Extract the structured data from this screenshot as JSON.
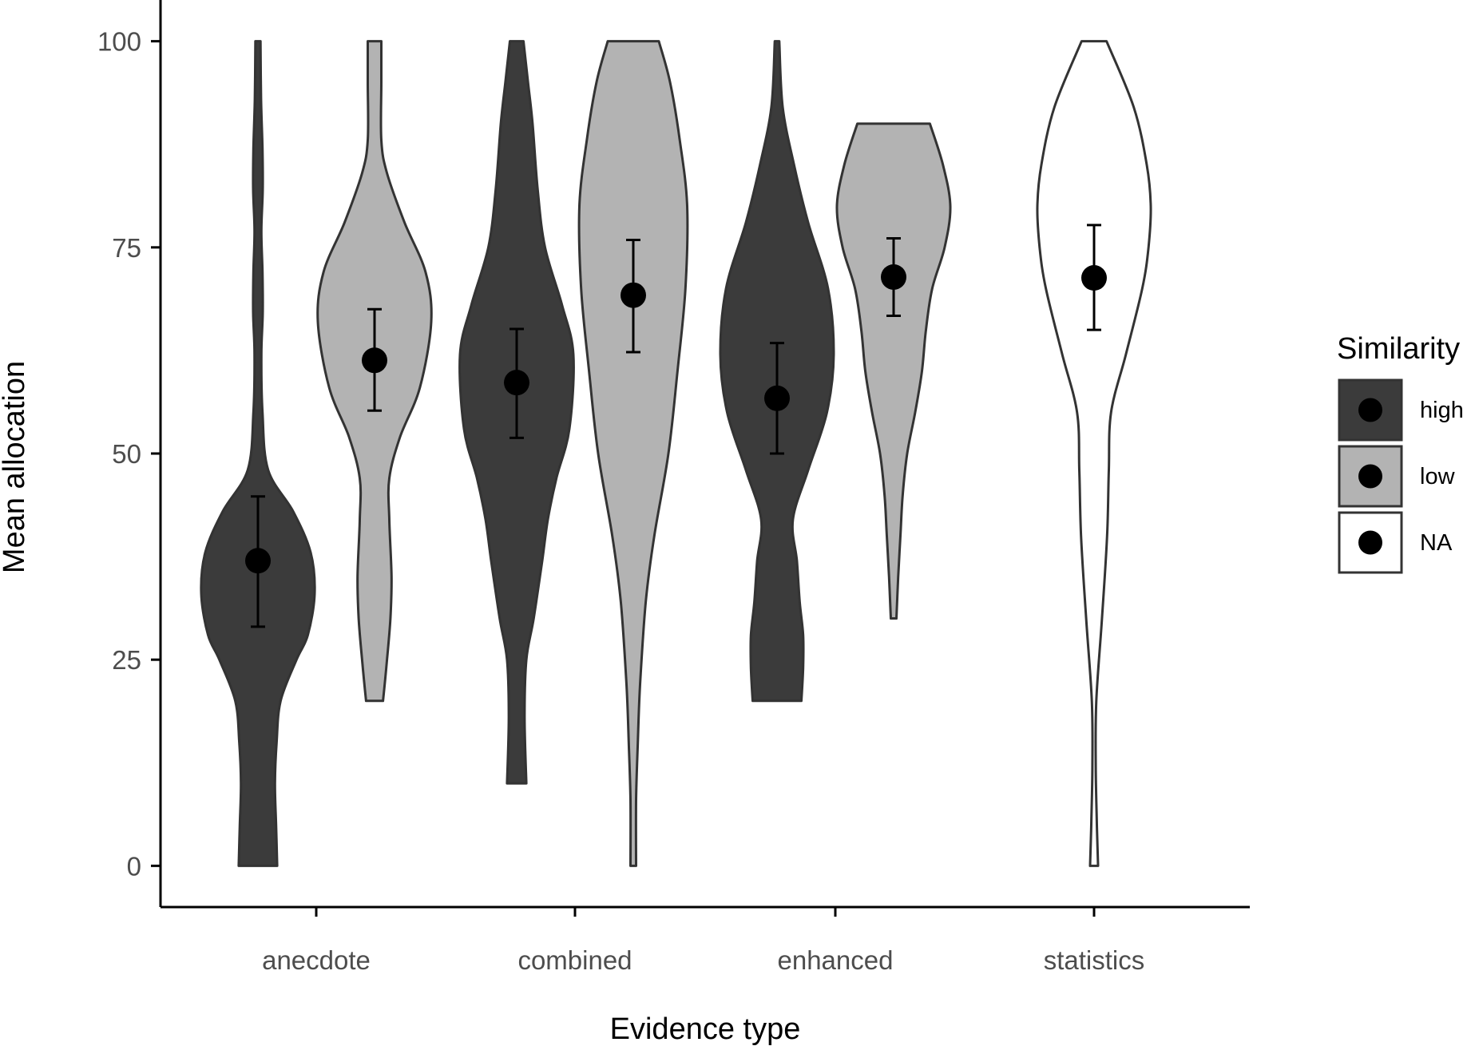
{
  "chart_data": {
    "type": "violin",
    "xlabel": "Evidence type",
    "ylabel": "Mean allocation",
    "categories": [
      "anecdote",
      "combined",
      "enhanced",
      "statistics"
    ],
    "ylim": [
      -5,
      105
    ],
    "yticks": [
      "0",
      "25",
      "50",
      "75",
      "100"
    ],
    "legend": {
      "title": "Similarity",
      "position": "right",
      "entries": [
        {
          "label": "high",
          "fill": "#3b3b3b"
        },
        {
          "label": "low",
          "fill": "#b3b3b3"
        },
        {
          "label": "NA",
          "fill": "#ffffff"
        }
      ]
    },
    "series": [
      {
        "category": "anecdote",
        "similarity": "high",
        "fill": "#3b3b3b",
        "mean": 37.0,
        "ci": [
          29.0,
          44.8
        ],
        "min": 0,
        "max": 100,
        "density": [
          [
            0,
            0.34
          ],
          [
            5,
            0.32
          ],
          [
            10,
            0.3
          ],
          [
            15,
            0.33
          ],
          [
            20,
            0.4
          ],
          [
            25,
            0.68
          ],
          [
            28,
            0.88
          ],
          [
            33,
            1.0
          ],
          [
            38,
            0.93
          ],
          [
            43,
            0.62
          ],
          [
            48,
            0.18
          ],
          [
            55,
            0.08
          ],
          [
            62,
            0.06
          ],
          [
            67,
            0.085
          ],
          [
            72,
            0.08
          ],
          [
            77,
            0.06
          ],
          [
            82,
            0.085
          ],
          [
            87,
            0.08
          ],
          [
            93,
            0.055
          ],
          [
            100,
            0.045
          ]
        ]
      },
      {
        "category": "anecdote",
        "similarity": "low",
        "fill": "#b3b3b3",
        "mean": 61.3,
        "ci": [
          55.2,
          67.5
        ],
        "min": 20,
        "max": 100,
        "density": [
          [
            20,
            0.15
          ],
          [
            25,
            0.22
          ],
          [
            30,
            0.28
          ],
          [
            35,
            0.3
          ],
          [
            42,
            0.26
          ],
          [
            47,
            0.26
          ],
          [
            52,
            0.45
          ],
          [
            58,
            0.8
          ],
          [
            66,
            1.0
          ],
          [
            72,
            0.9
          ],
          [
            78,
            0.53
          ],
          [
            84,
            0.22
          ],
          [
            88,
            0.12
          ],
          [
            95,
            0.12
          ],
          [
            100,
            0.12
          ]
        ]
      },
      {
        "category": "combined",
        "similarity": "high",
        "fill": "#3b3b3b",
        "mean": 58.6,
        "ci": [
          51.9,
          65.1
        ],
        "min": 10,
        "max": 100,
        "density": [
          [
            10,
            0.17
          ],
          [
            18,
            0.14
          ],
          [
            25,
            0.17
          ],
          [
            30,
            0.3
          ],
          [
            37,
            0.45
          ],
          [
            42,
            0.55
          ],
          [
            47,
            0.7
          ],
          [
            53,
            0.93
          ],
          [
            62,
            1.0
          ],
          [
            68,
            0.8
          ],
          [
            75,
            0.5
          ],
          [
            82,
            0.37
          ],
          [
            90,
            0.28
          ],
          [
            95,
            0.2
          ],
          [
            100,
            0.12
          ]
        ]
      },
      {
        "category": "combined",
        "similarity": "low",
        "fill": "#b3b3b3",
        "mean": 69.2,
        "ci": [
          62.3,
          75.9
        ],
        "min": 0,
        "max": 100,
        "density": [
          [
            0,
            0.05
          ],
          [
            8,
            0.05
          ],
          [
            15,
            0.08
          ],
          [
            22,
            0.12
          ],
          [
            32,
            0.22
          ],
          [
            40,
            0.37
          ],
          [
            50,
            0.62
          ],
          [
            60,
            0.78
          ],
          [
            70,
            0.92
          ],
          [
            80,
            0.95
          ],
          [
            88,
            0.82
          ],
          [
            95,
            0.65
          ],
          [
            100,
            0.45
          ]
        ]
      },
      {
        "category": "enhanced",
        "similarity": "high",
        "fill": "#3b3b3b",
        "mean": 56.7,
        "ci": [
          50.0,
          63.4
        ],
        "min": 20,
        "max": 100,
        "density": [
          [
            20,
            0.43
          ],
          [
            24,
            0.46
          ],
          [
            28,
            0.46
          ],
          [
            32,
            0.4
          ],
          [
            37,
            0.35
          ],
          [
            42,
            0.28
          ],
          [
            48,
            0.55
          ],
          [
            55,
            0.88
          ],
          [
            62,
            1.0
          ],
          [
            70,
            0.9
          ],
          [
            78,
            0.55
          ],
          [
            85,
            0.3
          ],
          [
            92,
            0.1
          ],
          [
            100,
            0.04
          ]
        ]
      },
      {
        "category": "enhanced",
        "similarity": "low",
        "fill": "#b3b3b3",
        "mean": 71.4,
        "ci": [
          66.7,
          76.1
        ],
        "min": 30,
        "max": 90,
        "density": [
          [
            30,
            0.05
          ],
          [
            35,
            0.08
          ],
          [
            40,
            0.12
          ],
          [
            45,
            0.16
          ],
          [
            50,
            0.24
          ],
          [
            55,
            0.38
          ],
          [
            60,
            0.5
          ],
          [
            65,
            0.57
          ],
          [
            70,
            0.68
          ],
          [
            75,
            0.9
          ],
          [
            80,
            1.0
          ],
          [
            85,
            0.87
          ],
          [
            90,
            0.64
          ]
        ]
      },
      {
        "category": "statistics",
        "similarity": "NA",
        "fill": "#ffffff",
        "mean": 71.3,
        "ci": [
          65.0,
          77.7
        ],
        "min": 0,
        "max": 100,
        "density": [
          [
            0,
            0.07
          ],
          [
            5,
            0.05
          ],
          [
            12,
            0.03
          ],
          [
            20,
            0.04
          ],
          [
            30,
            0.14
          ],
          [
            40,
            0.23
          ],
          [
            48,
            0.26
          ],
          [
            55,
            0.3
          ],
          [
            62,
            0.56
          ],
          [
            70,
            0.85
          ],
          [
            75,
            0.96
          ],
          [
            80,
            1.0
          ],
          [
            85,
            0.93
          ],
          [
            92,
            0.7
          ],
          [
            100,
            0.22
          ]
        ]
      }
    ]
  }
}
